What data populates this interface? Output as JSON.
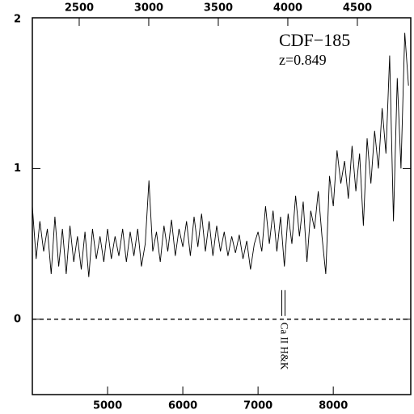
{
  "chart_data": {
    "type": "line",
    "annotations": [
      "CDF−185",
      "z=0.849"
    ],
    "line_label": "Ca II H&K",
    "line_x": 7337,
    "hline": 0,
    "xlim": [
      4000,
      9030
    ],
    "xticks": [
      5000,
      6000,
      7000,
      8000
    ],
    "x2lim": [
      2163,
      4884
    ],
    "x2ticks": [
      2500,
      3000,
      3500,
      4000,
      4500
    ],
    "ylim": [
      -0.5,
      2
    ],
    "yticks": [
      0,
      1,
      2
    ],
    "series": [
      {
        "color": "#000000",
        "x": [
          4000,
          4050,
          4100,
          4150,
          4200,
          4250,
          4300,
          4350,
          4400,
          4450,
          4500,
          4550,
          4600,
          4650,
          4700,
          4750,
          4800,
          4850,
          4900,
          4950,
          5000,
          5050,
          5100,
          5150,
          5200,
          5250,
          5300,
          5350,
          5400,
          5450,
          5500,
          5550,
          5600,
          5650,
          5700,
          5750,
          5800,
          5850,
          5900,
          5950,
          6000,
          6050,
          6100,
          6150,
          6200,
          6250,
          6300,
          6350,
          6400,
          6450,
          6500,
          6550,
          6600,
          6650,
          6700,
          6750,
          6800,
          6850,
          6900,
          6950,
          7000,
          7050,
          7100,
          7150,
          7200,
          7250,
          7300,
          7350,
          7400,
          7450,
          7500,
          7550,
          7600,
          7650,
          7700,
          7750,
          7800,
          7850,
          7900,
          7950,
          8000,
          8050,
          8100,
          8150,
          8200,
          8250,
          8300,
          8350,
          8400,
          8450,
          8500,
          8550,
          8600,
          8650,
          8700,
          8750,
          8800,
          8850,
          8900,
          8950,
          9000
        ],
        "values": [
          0.75,
          0.4,
          0.65,
          0.45,
          0.6,
          0.3,
          0.68,
          0.35,
          0.6,
          0.3,
          0.62,
          0.38,
          0.55,
          0.33,
          0.58,
          0.28,
          0.6,
          0.4,
          0.55,
          0.38,
          0.6,
          0.4,
          0.55,
          0.42,
          0.6,
          0.38,
          0.58,
          0.42,
          0.6,
          0.35,
          0.5,
          0.92,
          0.45,
          0.58,
          0.38,
          0.62,
          0.45,
          0.66,
          0.42,
          0.6,
          0.48,
          0.65,
          0.42,
          0.68,
          0.48,
          0.7,
          0.45,
          0.65,
          0.42,
          0.62,
          0.45,
          0.58,
          0.42,
          0.55,
          0.44,
          0.56,
          0.4,
          0.52,
          0.33,
          0.5,
          0.58,
          0.45,
          0.75,
          0.5,
          0.72,
          0.45,
          0.68,
          0.35,
          0.7,
          0.5,
          0.82,
          0.55,
          0.78,
          0.38,
          0.72,
          0.6,
          0.85,
          0.55,
          0.3,
          0.95,
          0.75,
          1.12,
          0.9,
          1.05,
          0.8,
          1.15,
          0.85,
          1.1,
          0.62,
          1.2,
          0.9,
          1.25,
          1.0,
          1.4,
          1.1,
          1.75,
          0.65,
          1.6,
          1.0,
          1.9,
          1.55
        ]
      }
    ]
  }
}
